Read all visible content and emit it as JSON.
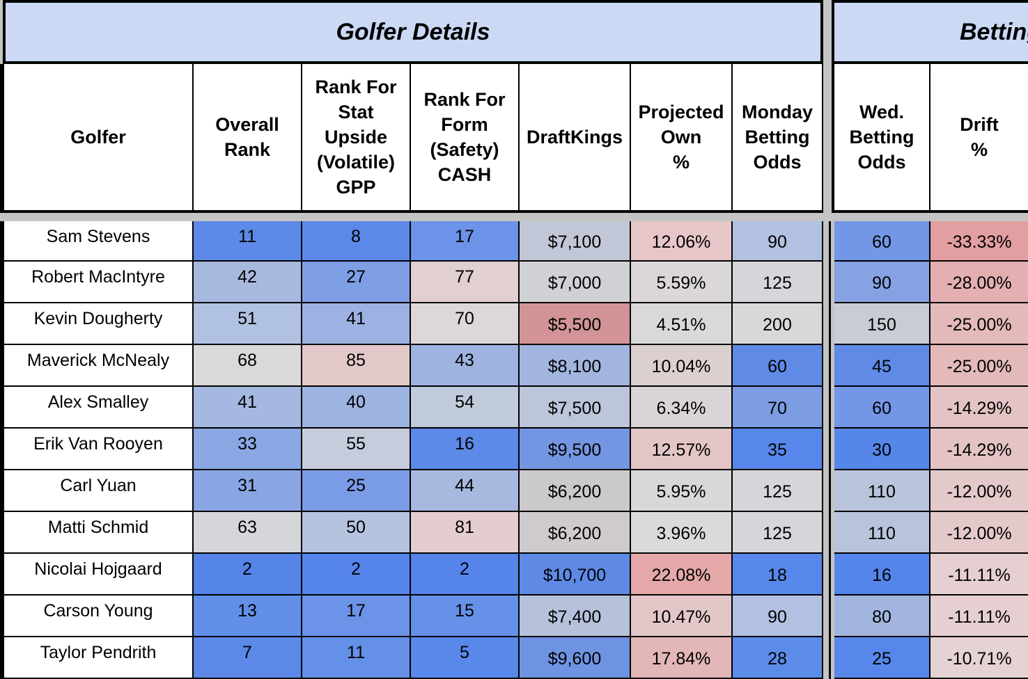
{
  "sections": {
    "left_title": "Golfer Details",
    "right_title": "Betting"
  },
  "headers": [
    "Golfer",
    "Overall\nRank",
    "Rank For\nStat\nUpside\n(Volatile)\nGPP",
    "Rank For\nForm\n(Safety)\nCASH",
    "DraftKings",
    "Projected\nOwn\n%",
    "Monday\nBetting\nOdds",
    "Wed.\nBetting\nOdds",
    "Drift\n%"
  ],
  "rows": [
    {
      "golfer": "Sam Stevens",
      "overall": "11",
      "stat": "8",
      "form": "17",
      "dk": "$7,100",
      "own": "12.06%",
      "mon": "90",
      "wed": "60",
      "drift": "-33.33%"
    },
    {
      "golfer": "Robert MacIntyre",
      "overall": "42",
      "stat": "27",
      "form": "77",
      "dk": "$7,000",
      "own": "5.59%",
      "mon": "125",
      "wed": "90",
      "drift": "-28.00%"
    },
    {
      "golfer": "Kevin Dougherty",
      "overall": "51",
      "stat": "41",
      "form": "70",
      "dk": "$5,500",
      "own": "4.51%",
      "mon": "200",
      "wed": "150",
      "drift": "-25.00%"
    },
    {
      "golfer": "Maverick McNealy",
      "overall": "68",
      "stat": "85",
      "form": "43",
      "dk": "$8,100",
      "own": "10.04%",
      "mon": "60",
      "wed": "45",
      "drift": "-25.00%"
    },
    {
      "golfer": "Alex Smalley",
      "overall": "41",
      "stat": "40",
      "form": "54",
      "dk": "$7,500",
      "own": "6.34%",
      "mon": "70",
      "wed": "60",
      "drift": "-14.29%"
    },
    {
      "golfer": "Erik Van Rooyen",
      "overall": "33",
      "stat": "55",
      "form": "16",
      "dk": "$9,500",
      "own": "12.57%",
      "mon": "35",
      "wed": "30",
      "drift": "-14.29%"
    },
    {
      "golfer": "Carl Yuan",
      "overall": "31",
      "stat": "25",
      "form": "44",
      "dk": "$6,200",
      "own": "5.95%",
      "mon": "125",
      "wed": "110",
      "drift": "-12.00%"
    },
    {
      "golfer": "Matti Schmid",
      "overall": "63",
      "stat": "50",
      "form": "81",
      "dk": "$6,200",
      "own": "3.96%",
      "mon": "125",
      "wed": "110",
      "drift": "-12.00%"
    },
    {
      "golfer": "Nicolai Hojgaard",
      "overall": "2",
      "stat": "2",
      "form": "2",
      "dk": "$10,700",
      "own": "22.08%",
      "mon": "18",
      "wed": "16",
      "drift": "-11.11%"
    },
    {
      "golfer": "Carson Young",
      "overall": "13",
      "stat": "17",
      "form": "15",
      "dk": "$7,400",
      "own": "10.47%",
      "mon": "90",
      "wed": "80",
      "drift": "-11.11%"
    },
    {
      "golfer": "Taylor Pendrith",
      "overall": "7",
      "stat": "11",
      "form": "5",
      "dk": "$9,600",
      "own": "17.84%",
      "mon": "28",
      "wed": "25",
      "drift": "-10.71%"
    }
  ],
  "cell_colors": [
    [
      "#ffffff",
      "#5d8ae8",
      "#5c89e8",
      "#6b93e8",
      "#c1c7d6",
      "#e6c6c8",
      "#b2c1e2",
      "#7397e6",
      "#e29ea0"
    ],
    [
      "#ffffff",
      "#a8b9e0",
      "#7e9ee6",
      "#e2d0d1",
      "#d0d1d5",
      "#dbd7d8",
      "#d5d6d9",
      "#86a2e2",
      "#e3afb1"
    ],
    [
      "#ffffff",
      "#b1c1e2",
      "#9db2e2",
      "#dcd7d8",
      "#d29496",
      "#d9d9da",
      "#d8d8d8",
      "#c8cdd5",
      "#e3b9ba"
    ],
    [
      "#ffffff",
      "#d9d9d9",
      "#e3c8c9",
      "#9fb3e1",
      "#a1b5df",
      "#dccfd0",
      "#5f8be6",
      "#5f8ae6",
      "#e3b9ba"
    ],
    [
      "#ffffff",
      "#a5b8e1",
      "#9db3e2",
      "#c2cbdc",
      "#bcc5d9",
      "#d9d5d6",
      "#7c9de4",
      "#7397e6",
      "#e4c3c4"
    ],
    [
      "#ffffff",
      "#8ba7e4",
      "#c5ccdb",
      "#5d8ae8",
      "#7496e2",
      "#e4c5c6",
      "#5787ea",
      "#5686ea",
      "#e4c3c4"
    ],
    [
      "#ffffff",
      "#8aa5e4",
      "#7a9be5",
      "#a8b9e0",
      "#ccc9cc",
      "#dad7d8",
      "#d5d6d9",
      "#b9c4dc",
      "#e4c9ca"
    ],
    [
      "#ffffff",
      "#d4d6da",
      "#b5c3df",
      "#e4cdce",
      "#cfcbcd",
      "#dadada",
      "#d5d6d9",
      "#b9c4dc",
      "#e4c9ca"
    ],
    [
      "#ffffff",
      "#5685ea",
      "#5585ea",
      "#5585ea",
      "#5e8ae6",
      "#e4a8a9",
      "#5787ea",
      "#5585ea",
      "#e5cfd0"
    ],
    [
      "#ffffff",
      "#6290e8",
      "#6b93e8",
      "#6591e8",
      "#b6c1db",
      "#e3c7c8",
      "#b2c1e2",
      "#a1b5df",
      "#e5cfd0"
    ],
    [
      "#ffffff",
      "#5c89e8",
      "#6490e8",
      "#5a88ea",
      "#6f93e3",
      "#e3b6b7",
      "#5d8be8",
      "#5787ea",
      "#e5d2d3"
    ]
  ]
}
